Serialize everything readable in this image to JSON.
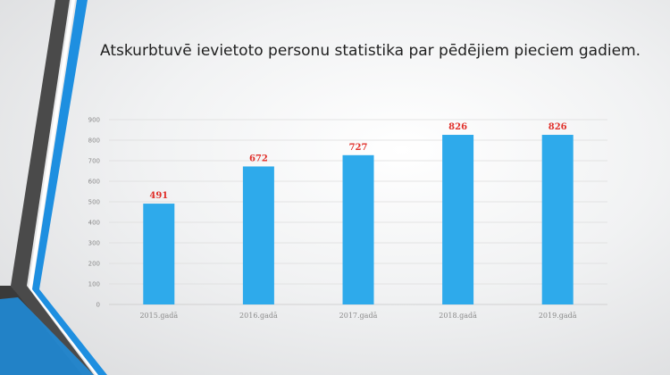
{
  "slide": {
    "title": "Atskurbtuvē ievietoto personu statistika par pēdējiem pieciem gadiem."
  },
  "theme": {
    "bar_color": "#2eaaeb",
    "label_color": "#e0302a",
    "accent_blue": "#1e8fe0",
    "accent_gray": "#4a4a4a"
  },
  "chart_data": {
    "type": "bar",
    "title": "",
    "xlabel": "",
    "ylabel": "",
    "categories": [
      "2015.gadā",
      "2016.gadā",
      "2017.gadā",
      "2018.gadā",
      "2019.gadā"
    ],
    "values": [
      491,
      672,
      727,
      826,
      826
    ],
    "data_labels": [
      "491",
      "672",
      "727",
      "826",
      "826"
    ],
    "ylim": [
      0,
      900
    ],
    "yticks": [
      "0",
      "100",
      "200",
      "300",
      "400",
      "500",
      "600",
      "700",
      "800",
      "900"
    ],
    "grid": true,
    "legend": "none"
  }
}
